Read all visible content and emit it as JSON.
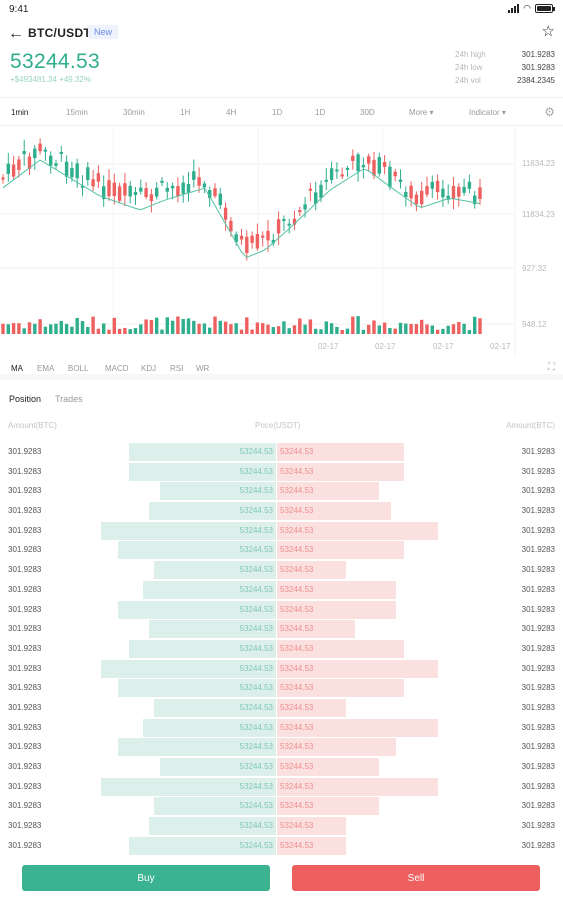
{
  "status_bar": {
    "time": "9:41"
  },
  "header": {
    "pair": "BTC/USDT",
    "badge": "New",
    "price": "53244.53",
    "change": "+$493481.34 +49.32%",
    "stats": [
      {
        "label": "24h high",
        "value": "301.9283"
      },
      {
        "label": "24h low",
        "value": "301.9283"
      },
      {
        "label": "24h vol",
        "value": "2384.2345"
      }
    ]
  },
  "timeframes": [
    "1min",
    "15min",
    "30min",
    "1H",
    "4H",
    "1D",
    "1D",
    "30D",
    "More",
    "Indicator"
  ],
  "chart": {
    "price_labels": [
      "11834.23",
      "11834.23",
      "927.32",
      "948.12"
    ],
    "date_labels": [
      "02-17",
      "02-17",
      "02-17",
      "02-17"
    ],
    "colors": {
      "up": "#2fae8e",
      "down": "#ee5f5f",
      "ma": "#56c3a4"
    }
  },
  "indicators": [
    "MA",
    "EMA",
    "BOLL",
    "MACD",
    "KDJ",
    "RSI",
    "WR"
  ],
  "tabs": [
    "Position",
    "Trades"
  ],
  "orderbook": {
    "headers": {
      "left": "Amount(BTC)",
      "mid": "Price(USDT)",
      "right": "Amount(BTC)"
    },
    "rows": [
      {
        "amt_l": "301.9283",
        "bid": "53244.53",
        "ask": "53244.53",
        "amt_r": "301.9283",
        "bid_depth": 0.53,
        "ask_depth": 0.46
      },
      {
        "amt_l": "301.9283",
        "bid": "53244.53",
        "ask": "53244.53",
        "amt_r": "301.9283",
        "bid_depth": 0.53,
        "ask_depth": 0.46
      },
      {
        "amt_l": "301.9283",
        "bid": "53244.53",
        "ask": "53244.53",
        "amt_r": "301.9283",
        "bid_depth": 0.42,
        "ask_depth": 0.37
      },
      {
        "amt_l": "301.9283",
        "bid": "53244.53",
        "ask": "53244.53",
        "amt_r": "301.9283",
        "bid_depth": 0.46,
        "ask_depth": 0.41
      },
      {
        "amt_l": "301.9283",
        "bid": "53244.53",
        "ask": "53244.53",
        "amt_r": "301.9283",
        "bid_depth": 0.63,
        "ask_depth": 0.58
      },
      {
        "amt_l": "301.9283",
        "bid": "53244.53",
        "ask": "53244.53",
        "amt_r": "301.9283",
        "bid_depth": 0.57,
        "ask_depth": 0.46
      },
      {
        "amt_l": "301.9283",
        "bid": "53244.53",
        "ask": "53244.53",
        "amt_r": "301.9283",
        "bid_depth": 0.44,
        "ask_depth": 0.25
      },
      {
        "amt_l": "301.9283",
        "bid": "53244.53",
        "ask": "53244.53",
        "amt_r": "301.9283",
        "bid_depth": 0.48,
        "ask_depth": 0.43
      },
      {
        "amt_l": "301.9283",
        "bid": "53244.53",
        "ask": "53244.53",
        "amt_r": "301.9283",
        "bid_depth": 0.57,
        "ask_depth": 0.43
      },
      {
        "amt_l": "301.9283",
        "bid": "53244.53",
        "ask": "53244.53",
        "amt_r": "301.9283",
        "bid_depth": 0.46,
        "ask_depth": 0.28
      },
      {
        "amt_l": "301.9283",
        "bid": "53244.53",
        "ask": "53244.53",
        "amt_r": "301.9283",
        "bid_depth": 0.53,
        "ask_depth": 0.46
      },
      {
        "amt_l": "301.9283",
        "bid": "53244.53",
        "ask": "53244.53",
        "amt_r": "301.9283",
        "bid_depth": 0.63,
        "ask_depth": 0.58
      },
      {
        "amt_l": "301.9283",
        "bid": "53244.53",
        "ask": "53244.53",
        "amt_r": "301.9283",
        "bid_depth": 0.57,
        "ask_depth": 0.46
      },
      {
        "amt_l": "301.9283",
        "bid": "53244.53",
        "ask": "53244.53",
        "amt_r": "301.9283",
        "bid_depth": 0.44,
        "ask_depth": 0.25
      },
      {
        "amt_l": "301.9283",
        "bid": "53244.53",
        "ask": "53244.53",
        "amt_r": "301.9283",
        "bid_depth": 0.48,
        "ask_depth": 0.58
      },
      {
        "amt_l": "301.9283",
        "bid": "53244.53",
        "ask": "53244.53",
        "amt_r": "301.9283",
        "bid_depth": 0.57,
        "ask_depth": 0.43
      },
      {
        "amt_l": "301.9283",
        "bid": "53244.53",
        "ask": "53244.53",
        "amt_r": "301.9283",
        "bid_depth": 0.42,
        "ask_depth": 0.37
      },
      {
        "amt_l": "301.9283",
        "bid": "53244.53",
        "ask": "53244.53",
        "amt_r": "301.9283",
        "bid_depth": 0.63,
        "ask_depth": 0.58
      },
      {
        "amt_l": "301.9283",
        "bid": "53244.53",
        "ask": "53244.53",
        "amt_r": "301.9283",
        "bid_depth": 0.44,
        "ask_depth": 0.37
      },
      {
        "amt_l": "301.9283",
        "bid": "53244.53",
        "ask": "53244.53",
        "amt_r": "301.9283",
        "bid_depth": 0.46,
        "ask_depth": 0.25
      },
      {
        "amt_l": "301.9283",
        "bid": "53244.53",
        "ask": "53244.53",
        "amt_r": "301.9283",
        "bid_depth": 0.53,
        "ask_depth": 0.25
      }
    ]
  },
  "actions": {
    "buy": "Buy",
    "sell": "Sell"
  }
}
